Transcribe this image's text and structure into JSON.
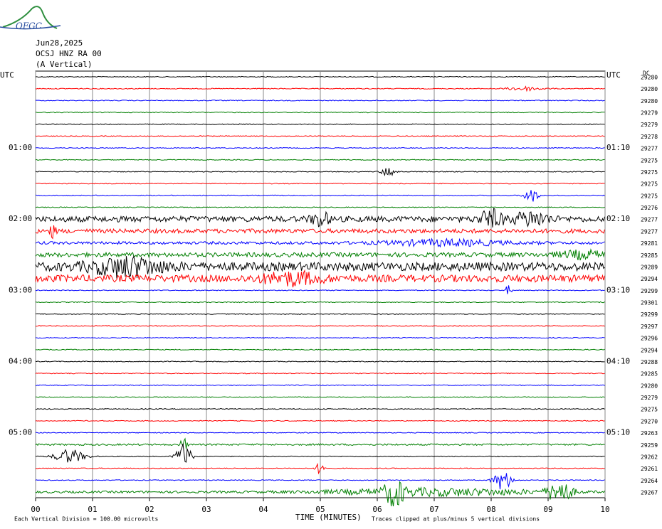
{
  "logo": "OFGC",
  "header": {
    "date": "Jun28,2025",
    "station": "OCSJ HNZ RA 00",
    "component": "(A Vertical)"
  },
  "chart_data": {
    "type": "helicorder",
    "xlabel": "TIME (MINUTES)",
    "xlim": [
      0,
      10
    ],
    "xticks": [
      {
        "value": 0,
        "label": "00"
      },
      {
        "value": 1,
        "label": "01"
      },
      {
        "value": 2,
        "label": "02"
      },
      {
        "value": 3,
        "label": "03"
      },
      {
        "value": 4,
        "label": "04"
      },
      {
        "value": 5,
        "label": "05"
      },
      {
        "value": 6,
        "label": "06"
      },
      {
        "value": 7,
        "label": "07"
      },
      {
        "value": 8,
        "label": "08"
      },
      {
        "value": 9,
        "label": "09"
      },
      10
    ],
    "left_labels": [
      "UTC",
      "01:00",
      "02:00",
      "03:00",
      "04:00",
      "05:00"
    ],
    "right_labels": [
      "UTC",
      "01:10",
      "02:10",
      "03:10",
      "04:10",
      "05:10"
    ],
    "dc_label": "DC",
    "dc_values": [
      29280,
      29280,
      29280,
      29279,
      29279,
      29278,
      29277,
      29275,
      29275,
      29275,
      29275,
      29276,
      29277,
      29277,
      29281,
      29285,
      29289,
      29294,
      29299,
      29301,
      29299,
      29297,
      29296,
      29294,
      29288,
      29285,
      29280,
      29279,
      29275,
      29270,
      29263,
      29259,
      29262,
      29261,
      29264,
      29267
    ],
    "colors": [
      "#000000",
      "#ff0000",
      "#0000ff",
      "#007f00"
    ],
    "grid": true
  },
  "footer": {
    "scale": "Each Vertical Division =  100.00 microvolts",
    "clip": "Traces clipped at plus/minus 5 vertical divisions"
  }
}
